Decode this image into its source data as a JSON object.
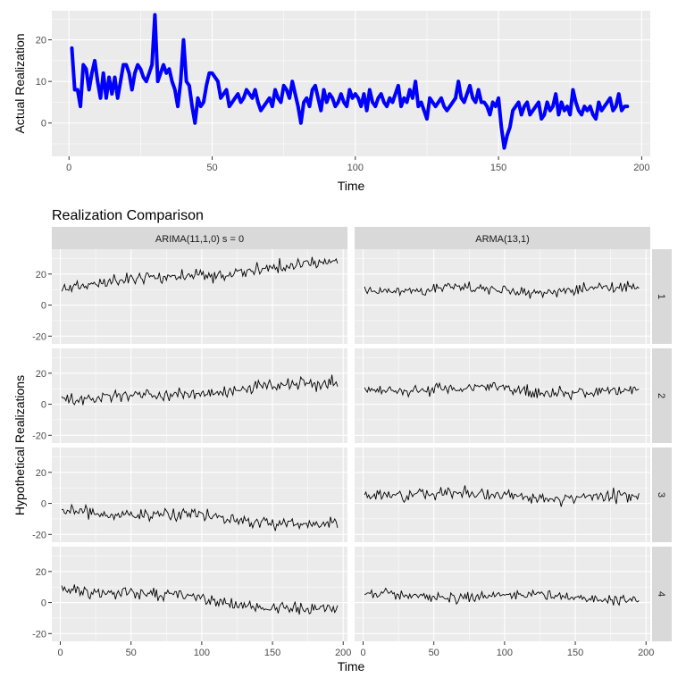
{
  "chart_data": [
    {
      "type": "line",
      "title": "",
      "xlabel": "Time",
      "ylabel": "Actual Realization",
      "xlim": [
        -6,
        203
      ],
      "ylim": [
        -8,
        27
      ],
      "xticks": [
        0,
        50,
        100,
        150,
        200
      ],
      "yticks": [
        0,
        10,
        20
      ],
      "grid": true,
      "line_color": "#0000ff",
      "series": [
        {
          "x": [
            1,
            2,
            3,
            4,
            5,
            6,
            7,
            8,
            9,
            10,
            11,
            12,
            13,
            14,
            15,
            16,
            17,
            18,
            19,
            20,
            21,
            22,
            23,
            24,
            25,
            26,
            27,
            28,
            29,
            30,
            31,
            32,
            33,
            34,
            35,
            36,
            37,
            38,
            39,
            40,
            41,
            42,
            43,
            44,
            45,
            46,
            47,
            48,
            49,
            50,
            51,
            52,
            53,
            54,
            55,
            56,
            57,
            58,
            59,
            60,
            61,
            62,
            63,
            64,
            65,
            66,
            67,
            68,
            69,
            70,
            71,
            72,
            73,
            74,
            75,
            76,
            77,
            78,
            79,
            80,
            81,
            82,
            83,
            84,
            85,
            86,
            87,
            88,
            89,
            90,
            91,
            92,
            93,
            94,
            95,
            96,
            97,
            98,
            99,
            100,
            101,
            102,
            103,
            104,
            105,
            106,
            107,
            108,
            109,
            110,
            111,
            112,
            113,
            114,
            115,
            116,
            117,
            118,
            119,
            120,
            121,
            122,
            123,
            124,
            125,
            126,
            127,
            128,
            129,
            130,
            131,
            132,
            133,
            134,
            135,
            136,
            137,
            138,
            139,
            140,
            141,
            142,
            143,
            144,
            145,
            146,
            147,
            148,
            149,
            150,
            151,
            152,
            153,
            154,
            155,
            156,
            157,
            158,
            159,
            160,
            161,
            162,
            163,
            164,
            165,
            166,
            167,
            168,
            169,
            170,
            171,
            172,
            173,
            174,
            175,
            176,
            177,
            178,
            179,
            180,
            181,
            182,
            183,
            184,
            185,
            186,
            187,
            188,
            189,
            190,
            191,
            192,
            193,
            194,
            195
          ],
          "values": [
            18,
            8,
            8,
            4,
            14,
            13,
            8,
            12,
            15,
            10,
            6,
            12,
            6,
            11,
            7,
            11,
            6,
            10,
            14,
            14,
            12,
            8,
            12,
            14,
            13,
            11,
            10,
            12,
            14,
            26,
            10,
            12,
            14,
            12,
            13,
            10,
            8,
            4,
            10,
            20,
            10,
            9,
            4,
            0,
            6,
            4,
            5,
            9,
            12,
            12,
            11,
            10,
            6,
            7,
            8,
            4,
            5,
            6,
            7,
            5,
            6,
            8,
            7,
            6,
            8,
            5,
            3,
            4,
            5,
            6,
            4,
            8,
            6,
            5,
            9,
            8,
            6,
            10,
            7,
            4,
            0,
            5,
            6,
            4,
            8,
            9,
            6,
            3,
            8,
            5,
            7,
            6,
            4,
            5,
            7,
            5,
            4,
            8,
            6,
            7,
            6,
            4,
            7,
            3,
            8,
            5,
            4,
            6,
            7,
            5,
            4,
            6,
            5,
            7,
            9,
            4,
            6,
            5,
            8,
            6,
            10,
            4,
            5,
            3,
            1,
            6,
            5,
            4,
            5,
            6,
            4,
            3,
            4,
            5,
            6,
            10,
            6,
            5,
            7,
            9,
            6,
            5,
            8,
            5,
            5,
            4,
            2,
            5,
            4,
            6,
            -1,
            -6,
            -3,
            -1,
            3,
            4,
            5,
            2,
            4,
            5,
            2,
            3,
            4,
            5,
            1,
            2,
            5,
            3,
            4,
            7,
            2,
            5,
            3,
            4,
            2,
            8,
            5,
            3,
            2,
            4,
            3,
            4,
            2,
            1,
            5,
            3,
            4,
            5,
            6,
            3,
            4,
            7,
            3,
            4,
            4
          ]
        }
      ]
    },
    {
      "type": "line",
      "title": "Realization Comparison",
      "xlabel": "Time",
      "ylabel": "Hypothetical Realizations",
      "xlim": [
        -6,
        203
      ],
      "ylim": [
        -25,
        36
      ],
      "xticks": [
        0,
        50,
        100,
        150,
        200
      ],
      "yticks": [
        -20,
        0,
        20
      ],
      "grid": true,
      "line_color": "#000000",
      "column_labels": [
        "ARIMA(11,1,0) s = 0",
        "ARMA(13,1)"
      ],
      "row_labels": [
        "1",
        "2",
        "3",
        "4"
      ],
      "panels": [
        {
          "col": 0,
          "row": 0,
          "n": 196,
          "start": 12,
          "end": 27,
          "amp": 3.5,
          "seed": 11
        },
        {
          "col": 1,
          "row": 0,
          "n": 195,
          "start": 10,
          "end": 10,
          "amp": 3.0,
          "seed": 23
        },
        {
          "col": 0,
          "row": 1,
          "n": 196,
          "start": 2,
          "end": 14,
          "amp": 3.5,
          "seed": 37
        },
        {
          "col": 1,
          "row": 1,
          "n": 195,
          "start": 10,
          "end": 8,
          "amp": 3.0,
          "seed": 41
        },
        {
          "col": 0,
          "row": 2,
          "n": 196,
          "start": -4,
          "end": -14,
          "amp": 3.5,
          "seed": 53
        },
        {
          "col": 1,
          "row": 2,
          "n": 195,
          "start": 7,
          "end": 3,
          "amp": 3.2,
          "seed": 67
        },
        {
          "col": 0,
          "row": 3,
          "n": 196,
          "start": 10,
          "end": -6,
          "amp": 3.5,
          "seed": 79
        },
        {
          "col": 1,
          "row": 3,
          "n": 195,
          "start": 5,
          "end": 3,
          "amp": 3.0,
          "seed": 83
        }
      ]
    }
  ]
}
